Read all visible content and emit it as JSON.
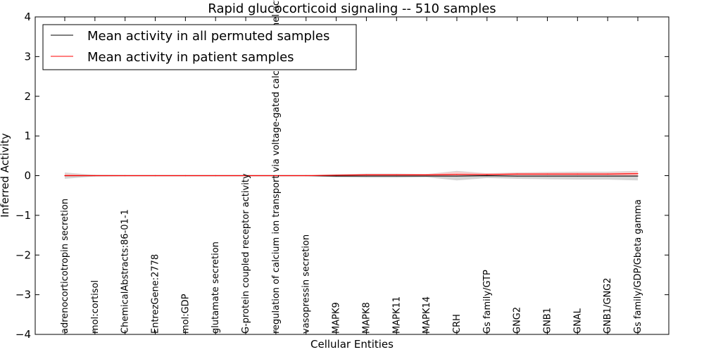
{
  "chart_data": {
    "type": "line",
    "title": "Rapid glucocorticoid signaling -- 510 samples",
    "xlabel": "Cellular Entities",
    "ylabel": "Inferred Activity",
    "ylim": [
      -4,
      4
    ],
    "yticks": [
      4,
      3,
      2,
      1,
      0,
      -1,
      -2,
      -3,
      -4
    ],
    "ytick_labels": [
      "4",
      "3",
      "2",
      "1",
      "0",
      "−1",
      "−2",
      "−3",
      "−4"
    ],
    "grid": false,
    "legend_position": "top-left",
    "categories": [
      "adrenocorticotropin secretion",
      "mol:cortisol",
      "ChemicalAbstracts:86-01-1",
      "EntrezGene:2778",
      "mol:GDP",
      "glutamate secretion",
      "G-protein coupled receptor activity",
      "regulation of calcium ion transport via voltage-gated calcium channel activity",
      "vasopressin secretion",
      "MAPK9",
      "MAPK8",
      "MAPK11",
      "MAPK14",
      "CRH",
      "Gs family/GTP",
      "GNG2",
      "GNB1",
      "GNAL",
      "GNB1/GNG2",
      "Gs family/GDP/Gbeta gamma"
    ],
    "series": [
      {
        "name": "Mean activity in all permuted samples",
        "color": "#000000",
        "values": [
          0,
          0,
          0,
          0,
          0,
          0,
          0,
          0,
          0,
          -0.01,
          -0.01,
          -0.01,
          -0.01,
          -0.01,
          0,
          -0.01,
          -0.01,
          -0.01,
          -0.01,
          -0.01
        ],
        "band_lower": [
          -0.08,
          -0.02,
          -0.01,
          -0.01,
          -0.01,
          -0.01,
          -0.01,
          -0.01,
          -0.01,
          -0.04,
          -0.05,
          -0.05,
          -0.04,
          -0.12,
          -0.06,
          -0.08,
          -0.09,
          -0.1,
          -0.1,
          -0.12
        ],
        "band_upper": [
          0.08,
          0.02,
          0.01,
          0.01,
          0.01,
          0.01,
          0.01,
          0.01,
          0.01,
          0.04,
          0.05,
          0.05,
          0.04,
          0.12,
          0.06,
          0.08,
          0.09,
          0.1,
          0.1,
          0.12
        ],
        "band_color": "#cccccc"
      },
      {
        "name": "Mean activity in patient samples",
        "color": "#ff0000",
        "values": [
          0,
          0,
          0,
          0,
          0,
          0,
          0,
          0,
          0,
          0.01,
          0.02,
          0.02,
          0.02,
          0.03,
          0.03,
          0.04,
          0.04,
          0.04,
          0.04,
          0.05
        ],
        "band_lower": [
          -0.02,
          -0.01,
          -0.01,
          -0.01,
          -0.01,
          -0.01,
          -0.01,
          -0.01,
          -0.01,
          0,
          0,
          0,
          0,
          0,
          0,
          0,
          0,
          0,
          0,
          0
        ],
        "band_upper": [
          0.05,
          0.02,
          0.01,
          0.01,
          0.01,
          0.01,
          0.01,
          0.01,
          0.01,
          0.03,
          0.04,
          0.04,
          0.04,
          0.1,
          0.06,
          0.07,
          0.08,
          0.08,
          0.08,
          0.1
        ],
        "band_color": "#ffcccc"
      }
    ]
  }
}
